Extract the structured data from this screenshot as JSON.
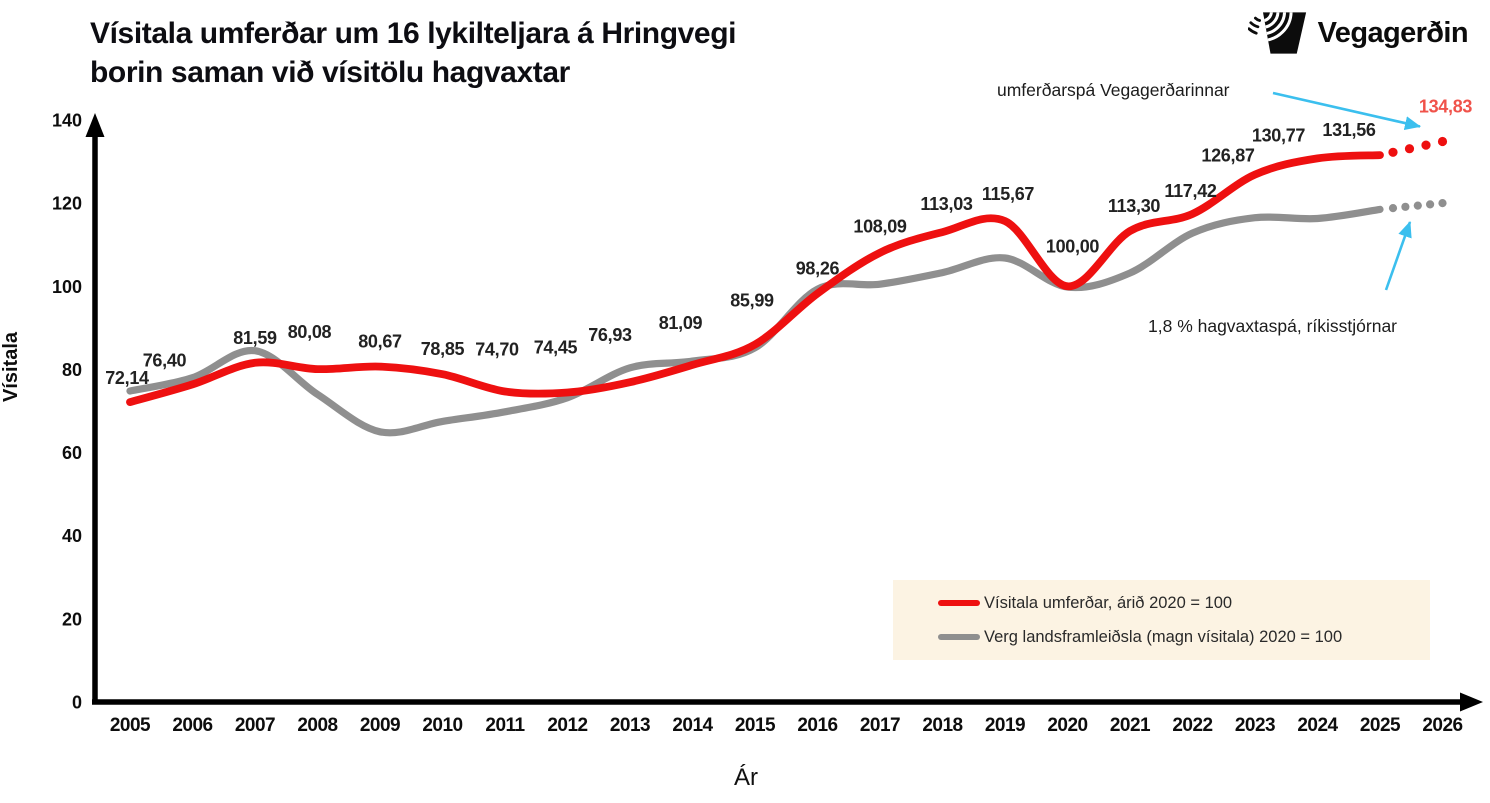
{
  "header": {
    "title_line1": "Vísitala umferðar um 16 lykilteljara á Hringvegi",
    "title_line2": "borin saman við vísitölu hagvaxtar",
    "brand": "Vegagerðin"
  },
  "annotations": {
    "traffic_forecast": "umferðarspá Vegagerðarinnar",
    "gdp_forecast": "1,8 % hagvaxtaspá, ríkisstjórnar"
  },
  "legend": {
    "items": [
      {
        "label": "Vísitala umferðar, árið 2020 = 100",
        "color": "#ee1010"
      },
      {
        "label": "Verg landsframleiðsla (magn vísitala) 2020 = 100",
        "color": "#8f8f8f"
      }
    ],
    "background": "#fcf3e3"
  },
  "colors": {
    "traffic": "#ee1010",
    "gdp": "#8f8f8f",
    "arrow": "#3bbfee",
    "forecast_label": "#f0524a",
    "axis": "#000000"
  },
  "chart_data": {
    "type": "line",
    "title": "Vísitala umferðar um 16 lykilteljara á Hringvegi borin saman við vísitölu hagvaxtar",
    "xlabel": "Ár",
    "ylabel": "Vísitala",
    "ylim": [
      0,
      140
    ],
    "ytick_step": 20,
    "grid": false,
    "legend_position": "inside-bottom-right",
    "x": [
      2005,
      2006,
      2007,
      2008,
      2009,
      2010,
      2011,
      2012,
      2013,
      2014,
      2015,
      2016,
      2017,
      2018,
      2019,
      2020,
      2021,
      2022,
      2023,
      2024,
      2025,
      2026
    ],
    "series": [
      {
        "name": "Vísitala umferðar, árið 2020 = 100",
        "color": "#ee1010",
        "values": [
          72.14,
          76.4,
          81.59,
          80.08,
          80.67,
          78.85,
          74.7,
          74.45,
          76.93,
          81.09,
          85.99,
          98.26,
          108.09,
          113.03,
          115.67,
          100.0,
          113.3,
          117.42,
          126.87,
          130.77,
          131.56
        ],
        "labels": [
          "72,14",
          "76,40",
          "81,59",
          "80,08",
          "80,67",
          "78,85",
          "74,70",
          "74,45",
          "76,93",
          "81,09",
          "85,99",
          "98,26",
          "108,09",
          "113,03",
          "115,67",
          "100,00",
          "113,30",
          "117,42",
          "126,87",
          "130,77",
          "131,56"
        ],
        "forecast": {
          "year": 2026,
          "value": 134.83,
          "label": "134,83",
          "style": "dotted"
        }
      },
      {
        "name": "Verg landsframleiðsla (magn vísitala) 2020 = 100",
        "color": "#8f8f8f",
        "values_estimated_from_pixels": true,
        "values": [
          74.8,
          78.0,
          84.5,
          74.0,
          65.0,
          67.5,
          69.8,
          73.2,
          80.4,
          82.0,
          85.2,
          99.3,
          100.5,
          103.3,
          106.8,
          99.8,
          103.2,
          112.8,
          116.5,
          116.3,
          118.5
        ],
        "forecast": {
          "year": 2026,
          "value": 120.0,
          "style": "dotted"
        }
      }
    ]
  }
}
